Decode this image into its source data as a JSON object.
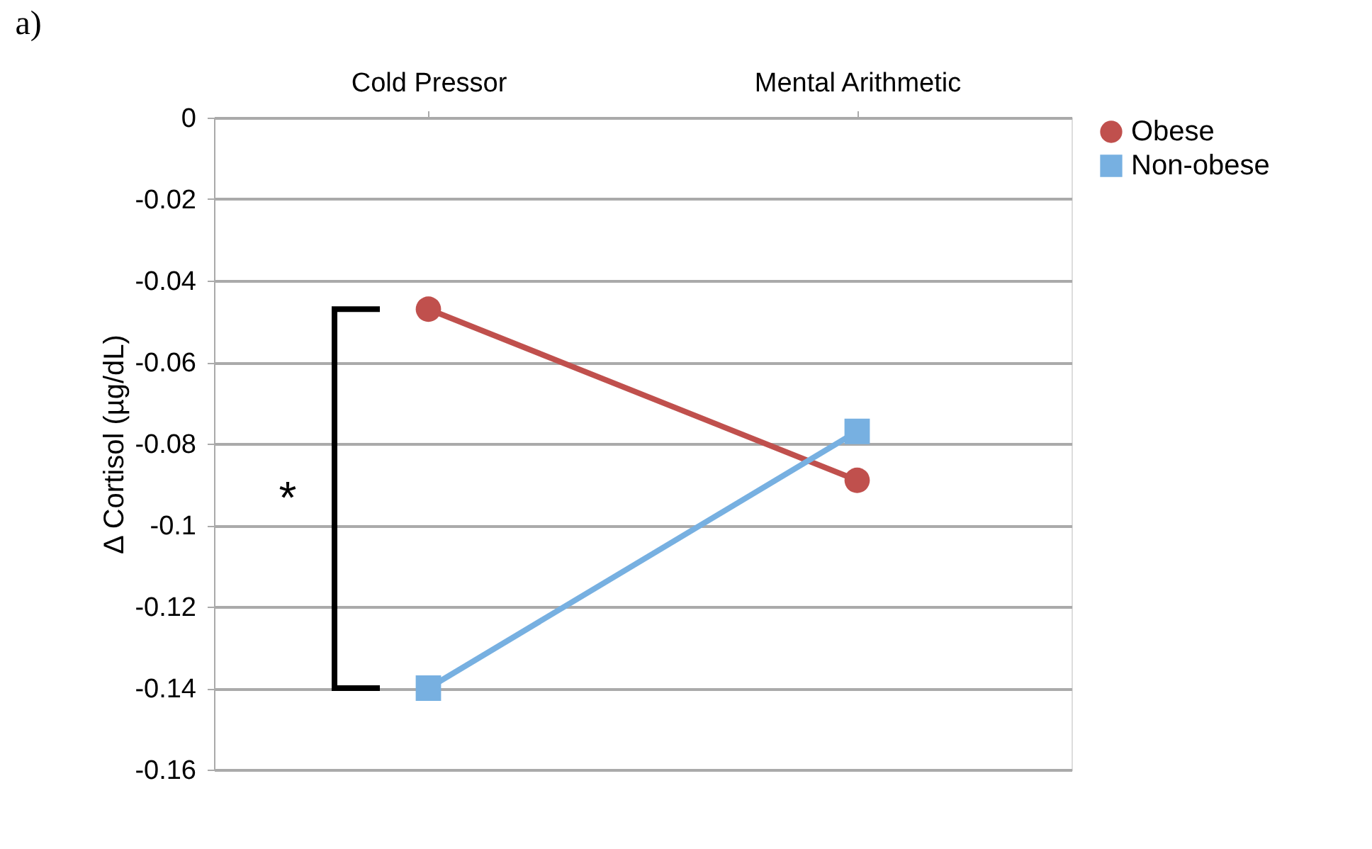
{
  "chart_data": {
    "type": "line",
    "title": "a)",
    "ylabel": "Δ Cortisol (µg/dL)",
    "categories": [
      "Cold Pressor",
      "Mental Arithmetic"
    ],
    "series": [
      {
        "name": "Obese",
        "color": "#c0504d",
        "marker": "circle",
        "values": [
          -0.047,
          -0.089
        ]
      },
      {
        "name": "Non-obese",
        "color": "#77b0e1",
        "marker": "square",
        "values": [
          -0.14,
          -0.077
        ]
      }
    ],
    "ylim": [
      -0.16,
      0
    ],
    "yticks": [
      0,
      -0.02,
      -0.04,
      -0.06,
      -0.08,
      -0.1,
      -0.12,
      -0.14,
      -0.16
    ],
    "grid": "y",
    "legend": "right",
    "line_style": "solid",
    "annotations": [
      "*"
    ]
  }
}
